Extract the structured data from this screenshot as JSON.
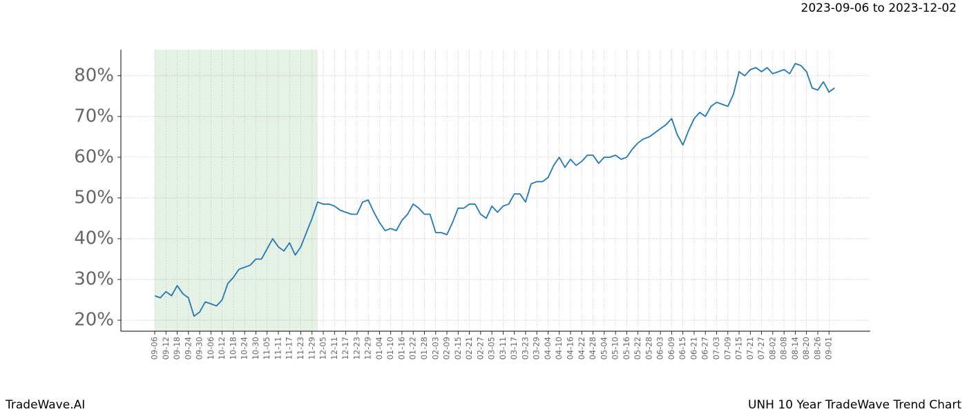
{
  "chart_data": {
    "type": "line",
    "subtitle": "2023-09-06 to 2023-12-02",
    "footer_left": "TradeWave.AI",
    "footer_right": "UNH 10 Year TradeWave Trend Chart",
    "categories": [
      "09-06",
      null,
      "09-12",
      null,
      "09-18",
      null,
      "09-24",
      null,
      "09-30",
      null,
      "10-06",
      null,
      "10-12",
      null,
      "10-18",
      null,
      "10-24",
      null,
      "10-30",
      null,
      "11-05",
      null,
      "11-11",
      null,
      "11-17",
      null,
      "11-23",
      null,
      "11-29",
      null,
      "12-05",
      null,
      "12-11",
      null,
      "12-17",
      null,
      "12-23",
      null,
      "12-29",
      null,
      "01-04",
      null,
      "01-10",
      null,
      "01-16",
      null,
      "01-22",
      null,
      "01-28",
      null,
      "02-03",
      null,
      "02-09",
      null,
      "02-15",
      null,
      "02-21",
      null,
      "02-27",
      null,
      "03-05",
      null,
      "03-11",
      null,
      "03-17",
      null,
      "03-23",
      null,
      "03-29",
      null,
      "04-04",
      null,
      "04-10",
      null,
      "04-16",
      null,
      "04-22",
      null,
      "04-28",
      null,
      "05-04",
      null,
      "05-10",
      null,
      "05-16",
      null,
      "05-22",
      null,
      "05-28",
      null,
      "06-03",
      null,
      "06-09",
      null,
      "06-15",
      null,
      "06-21",
      null,
      "06-27",
      null,
      "07-03",
      null,
      "07-09",
      null,
      "07-15",
      null,
      "07-21",
      null,
      "07-27",
      null,
      "08-02",
      null,
      "08-08",
      null,
      "08-14",
      null,
      "08-20",
      null,
      "08-26",
      null,
      "09-01",
      null
    ],
    "values": [
      26,
      25.5,
      27,
      26,
      28.5,
      26.5,
      25.5,
      21,
      22,
      24.5,
      24,
      23.5,
      25,
      29,
      30.5,
      32.5,
      33,
      33.5,
      35,
      35,
      37.5,
      40,
      38,
      37,
      39,
      36,
      38,
      41.5,
      45,
      49,
      48.5,
      48.5,
      48,
      47,
      46.5,
      46,
      46,
      49,
      49.5,
      46.5,
      44,
      42,
      42.5,
      42,
      44.5,
      46,
      48.5,
      47.5,
      46,
      46,
      41.5,
      41.5,
      41,
      44,
      47.5,
      47.5,
      48.5,
      48.5,
      46,
      45,
      48,
      46.5,
      48,
      48.5,
      51,
      51,
      49,
      53.5,
      54,
      54,
      55,
      58,
      60,
      57.5,
      59.5,
      58,
      59,
      60.5,
      60.5,
      58.5,
      60,
      60,
      60.5,
      59.5,
      60,
      62,
      63.5,
      64.5,
      65,
      66,
      67,
      68,
      69.5,
      65.5,
      63,
      66.5,
      69.5,
      71,
      70,
      72.5,
      73.5,
      73,
      72.5,
      75.5,
      81,
      80,
      81.5,
      82,
      81,
      82,
      80.5,
      81,
      81.5,
      80.5,
      83,
      82.5,
      81,
      77,
      76.5,
      78.5,
      76,
      77
    ],
    "color": "#1f77b4",
    "shaded_span": [
      0,
      29
    ],
    "shade_color": "#d5e8d4",
    "ylim": [
      17.3,
      86.4
    ],
    "yticks": [
      {
        "value": 20,
        "label": "20%"
      },
      {
        "value": 30,
        "label": "30%"
      },
      {
        "value": 40,
        "label": "40%"
      },
      {
        "value": 50,
        "label": "50%"
      },
      {
        "value": 60,
        "label": "60%"
      },
      {
        "value": 70,
        "label": "70%"
      },
      {
        "value": 80,
        "label": "80%"
      }
    ],
    "grid": true
  }
}
